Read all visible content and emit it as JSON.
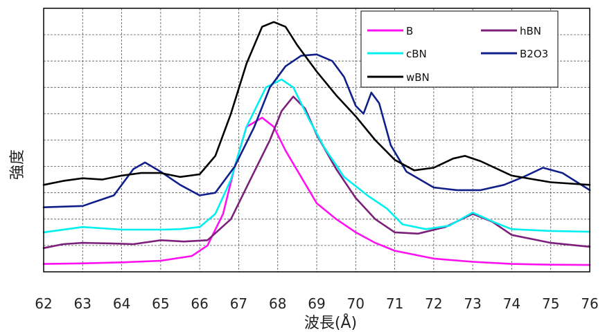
{
  "chart_data": {
    "type": "line",
    "xlabel": "波長(Å)",
    "ylabel": "強度",
    "xlim": [
      62,
      76
    ],
    "ylim": [
      0,
      10
    ],
    "x_ticks": [
      "62",
      "63",
      "64",
      "65",
      "66",
      "67",
      "68",
      "69",
      "70",
      "71",
      "72",
      "73",
      "74",
      "75",
      "76"
    ],
    "y_ticks_labeled": false,
    "grid": true,
    "legend_position": "top-right",
    "series": [
      {
        "name": "B",
        "color": "#ff10f0",
        "points": [
          [
            62,
            0.3
          ],
          [
            63,
            0.32
          ],
          [
            64,
            0.36
          ],
          [
            65,
            0.42
          ],
          [
            65.8,
            0.6
          ],
          [
            66.2,
            1.0
          ],
          [
            66.6,
            2.2
          ],
          [
            66.9,
            4.0
          ],
          [
            67.2,
            5.5
          ],
          [
            67.6,
            5.85
          ],
          [
            67.9,
            5.5
          ],
          [
            68.2,
            4.6
          ],
          [
            68.6,
            3.6
          ],
          [
            69,
            2.6
          ],
          [
            69.5,
            2.0
          ],
          [
            70,
            1.5
          ],
          [
            70.5,
            1.1
          ],
          [
            71,
            0.8
          ],
          [
            72,
            0.5
          ],
          [
            73,
            0.38
          ],
          [
            74,
            0.3
          ],
          [
            75,
            0.27
          ],
          [
            76,
            0.26
          ]
        ]
      },
      {
        "name": "hBN",
        "color": "#7b1f7b",
        "points": [
          [
            62,
            0.9
          ],
          [
            62.5,
            1.05
          ],
          [
            63,
            1.1
          ],
          [
            63.7,
            1.08
          ],
          [
            64.3,
            1.05
          ],
          [
            65,
            1.2
          ],
          [
            65.6,
            1.15
          ],
          [
            66.2,
            1.2
          ],
          [
            66.8,
            2.0
          ],
          [
            67.3,
            3.5
          ],
          [
            67.8,
            5.0
          ],
          [
            68.1,
            6.1
          ],
          [
            68.4,
            6.65
          ],
          [
            68.7,
            6.2
          ],
          [
            69,
            5.2
          ],
          [
            69.5,
            3.9
          ],
          [
            70,
            2.8
          ],
          [
            70.5,
            2.0
          ],
          [
            71,
            1.5
          ],
          [
            71.6,
            1.45
          ],
          [
            72.3,
            1.7
          ],
          [
            73,
            2.2
          ],
          [
            73.5,
            1.9
          ],
          [
            74,
            1.4
          ],
          [
            75,
            1.1
          ],
          [
            76,
            0.95
          ]
        ]
      },
      {
        "name": "cBN",
        "color": "#00f0f0",
        "points": [
          [
            62,
            1.5
          ],
          [
            63,
            1.7
          ],
          [
            64,
            1.6
          ],
          [
            65,
            1.6
          ],
          [
            65.5,
            1.62
          ],
          [
            66,
            1.7
          ],
          [
            66.4,
            2.2
          ],
          [
            66.8,
            3.5
          ],
          [
            67.2,
            5.5
          ],
          [
            67.7,
            7.0
          ],
          [
            68.1,
            7.3
          ],
          [
            68.4,
            7.0
          ],
          [
            68.8,
            5.8
          ],
          [
            69.2,
            4.7
          ],
          [
            69.7,
            3.6
          ],
          [
            70.3,
            2.9
          ],
          [
            70.8,
            2.4
          ],
          [
            71.2,
            1.8
          ],
          [
            71.8,
            1.62
          ],
          [
            72.4,
            1.75
          ],
          [
            73,
            2.25
          ],
          [
            73.6,
            1.85
          ],
          [
            74,
            1.62
          ],
          [
            75,
            1.55
          ],
          [
            76,
            1.52
          ]
        ]
      },
      {
        "name": "B2O3",
        "color": "#101f8a",
        "points": [
          [
            62,
            2.45
          ],
          [
            63,
            2.5
          ],
          [
            63.8,
            2.9
          ],
          [
            64.3,
            3.9
          ],
          [
            64.6,
            4.15
          ],
          [
            65,
            3.8
          ],
          [
            65.5,
            3.3
          ],
          [
            66,
            2.9
          ],
          [
            66.4,
            3.0
          ],
          [
            66.9,
            4.0
          ],
          [
            67.4,
            5.5
          ],
          [
            67.8,
            7.0
          ],
          [
            68.2,
            7.8
          ],
          [
            68.6,
            8.2
          ],
          [
            69,
            8.25
          ],
          [
            69.4,
            8.0
          ],
          [
            69.7,
            7.4
          ],
          [
            70,
            6.3
          ],
          [
            70.2,
            6.0
          ],
          [
            70.4,
            6.8
          ],
          [
            70.6,
            6.4
          ],
          [
            70.9,
            4.8
          ],
          [
            71.3,
            3.8
          ],
          [
            72,
            3.2
          ],
          [
            72.6,
            3.1
          ],
          [
            73.2,
            3.1
          ],
          [
            73.8,
            3.3
          ],
          [
            74.3,
            3.6
          ],
          [
            74.8,
            3.95
          ],
          [
            75.3,
            3.75
          ],
          [
            76,
            3.1
          ]
        ]
      },
      {
        "name": "wBN",
        "color": "#000000",
        "points": [
          [
            62,
            3.3
          ],
          [
            62.5,
            3.45
          ],
          [
            63,
            3.55
          ],
          [
            63.5,
            3.5
          ],
          [
            64,
            3.65
          ],
          [
            64.5,
            3.75
          ],
          [
            65,
            3.75
          ],
          [
            65.5,
            3.6
          ],
          [
            66,
            3.7
          ],
          [
            66.4,
            4.4
          ],
          [
            66.8,
            6.0
          ],
          [
            67.2,
            7.9
          ],
          [
            67.6,
            9.3
          ],
          [
            67.9,
            9.48
          ],
          [
            68.2,
            9.3
          ],
          [
            68.5,
            8.6
          ],
          [
            69,
            7.6
          ],
          [
            69.5,
            6.7
          ],
          [
            70,
            5.9
          ],
          [
            70.5,
            5.0
          ],
          [
            71,
            4.25
          ],
          [
            71.5,
            3.85
          ],
          [
            72,
            3.95
          ],
          [
            72.5,
            4.3
          ],
          [
            72.8,
            4.4
          ],
          [
            73.2,
            4.2
          ],
          [
            74,
            3.65
          ],
          [
            75,
            3.4
          ],
          [
            76,
            3.3
          ]
        ]
      }
    ]
  }
}
